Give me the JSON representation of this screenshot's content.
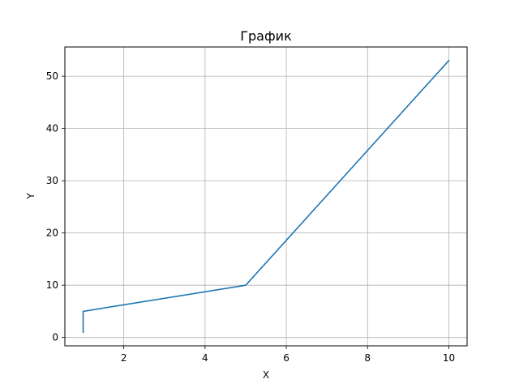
{
  "chart_data": {
    "type": "line",
    "title": "График",
    "xlabel": "X",
    "ylabel": "Y",
    "xlim": [
      0.55,
      10.45
    ],
    "ylim": [
      -1.6,
      55.6
    ],
    "xticks": [
      2,
      4,
      6,
      8,
      10
    ],
    "yticks": [
      0,
      10,
      20,
      30,
      40,
      50
    ],
    "grid": true,
    "series": [
      {
        "color": "#1f77b4",
        "x": [
          1,
          1,
          5,
          10
        ],
        "y": [
          1,
          5,
          10,
          53
        ]
      }
    ]
  }
}
